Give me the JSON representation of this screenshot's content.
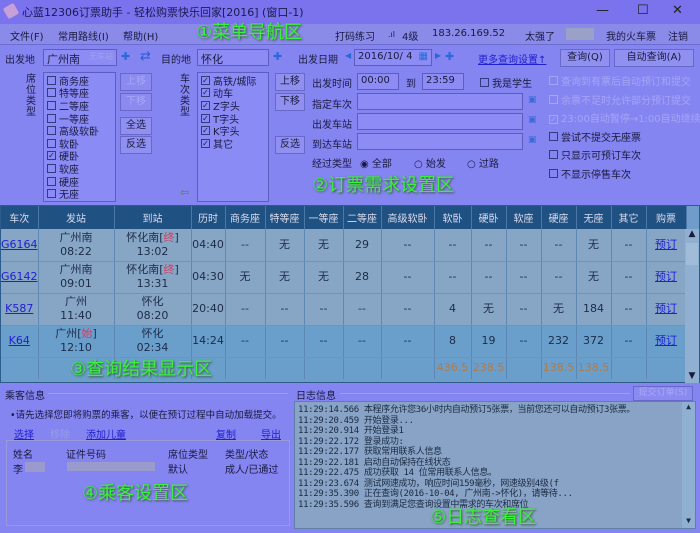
{
  "window": {
    "title": "心蓝12306订票助手 - 轻松购票快乐回家[2016] (窗口-1)",
    "minimize": "—",
    "maximize": "☐",
    "close": "✕"
  },
  "menu": {
    "items": [
      "文件(F)",
      "常用路线(I)",
      "帮助(H)"
    ],
    "captcha_practice": "打码练习",
    "signal": "4级",
    "ip": "183.26.169.52",
    "status": "太强了",
    "my_tickets": "我的火车票",
    "logout": "注销"
  },
  "annotations": [
    "①菜单导航区",
    "②订票需求设置区",
    "③查询结果显示区",
    "④乘客设置区",
    "⑤日志查看区"
  ],
  "query": {
    "from_label": "出发地",
    "from_value": "广州南",
    "from_hint": "无车站",
    "to_label": "目的地",
    "to_value": "怀化",
    "date_label": "出发日期",
    "date_value": "2016/10/ 4",
    "more_settings": "更多查询设置↑",
    "search": "查询(Q)",
    "auto_search": "自动查询(A)",
    "seat_type_label": "席位类型",
    "seat_types": [
      {
        "label": "商务座",
        "checked": false
      },
      {
        "label": "特等座",
        "checked": false
      },
      {
        "label": "二等座",
        "checked": false
      },
      {
        "label": "一等座",
        "checked": false
      },
      {
        "label": "高级软卧",
        "checked": false
      },
      {
        "label": "软卧",
        "checked": false
      },
      {
        "label": "硬卧",
        "checked": true
      },
      {
        "label": "软座",
        "checked": false
      },
      {
        "label": "硬座",
        "checked": false
      },
      {
        "label": "无座",
        "checked": false
      }
    ],
    "move_up": "上移",
    "move_down": "下移",
    "select_all": "全选",
    "invert": "反选",
    "train_type_label": "车次类型",
    "train_types": [
      {
        "label": "高铁/城际",
        "checked": true
      },
      {
        "label": "动车",
        "checked": true
      },
      {
        "label": "Z字头",
        "checked": true
      },
      {
        "label": "T字头",
        "checked": true
      },
      {
        "label": "K字头",
        "checked": true
      },
      {
        "label": "其它",
        "checked": true
      }
    ],
    "time_label": "出发时间",
    "time_from": "00:00",
    "to": "到",
    "time_to": "23:59",
    "student": "我是学生",
    "train_no_label": "指定车次",
    "depart_station_label": "出发车站",
    "arrive_station_label": "到达车站",
    "pass_type_label": "经过类型",
    "pass_types": [
      "全部",
      "始发",
      "过路"
    ],
    "options_disabled": [
      "查询到有票后自动预订和提交",
      "余票不足时允许部分预订提交",
      "23:00自动暂停→1:00自动继续"
    ],
    "options": [
      "尝试不提交无座票",
      "只显示可预订车次",
      "不显示停售车次"
    ]
  },
  "results": {
    "headers": [
      "车次",
      "发站",
      "到站",
      "历时",
      "商务座",
      "特等座",
      "一等座",
      "二等座",
      "高级软卧",
      "软卧",
      "硬卧",
      "软座",
      "硬座",
      "无座",
      "其它",
      "购票"
    ],
    "rows": [
      {
        "train": "G6164",
        "from": "广州南",
        "from_tag": "",
        "dep": "08:22",
        "to": "怀化南",
        "to_tag": "终",
        "arr": "13:02",
        "dur": "04:40",
        "seats": [
          "--",
          "无",
          "无",
          "29",
          "--",
          "--",
          "--",
          "--",
          "--",
          "无",
          "--"
        ],
        "buy": "预订"
      },
      {
        "train": "G6142",
        "from": "广州南",
        "from_tag": "",
        "dep": "09:01",
        "to": "怀化南",
        "to_tag": "终",
        "arr": "13:31",
        "dur": "04:30",
        "seats": [
          "无",
          "无",
          "无",
          "28",
          "--",
          "--",
          "--",
          "--",
          "--",
          "无",
          "--"
        ],
        "buy": "预订"
      },
      {
        "train": "K587",
        "from": "广州",
        "from_tag": "",
        "dep": "11:40",
        "to": "怀化",
        "to_tag": "",
        "arr": "08:20",
        "dur": "20:40",
        "seats": [
          "--",
          "--",
          "--",
          "--",
          "--",
          "4",
          "无",
          "--",
          "无",
          "184",
          "--"
        ],
        "buy": "预订"
      },
      {
        "train": "K64",
        "from": "广州",
        "from_tag": "始",
        "dep": "12:10",
        "to": "怀化",
        "to_tag": "",
        "arr": "02:34",
        "dur": "14:24",
        "seats": [
          "--",
          "--",
          "--",
          "--",
          "--",
          "8",
          "19",
          "--",
          "232",
          "372",
          "--"
        ],
        "buy": "预订"
      }
    ],
    "prices": [
      "",
      "",
      "",
      "",
      "",
      "",
      "",
      "",
      "",
      "436.5",
      "238.5",
      "",
      "138.5",
      "138.5",
      "",
      ""
    ]
  },
  "passengers": {
    "title": "乘客信息",
    "hint": "•请先选择您即将购票的乘客，以便在预订过程中自动加载提交。",
    "select": "选择",
    "remove": "移除",
    "add_child": "添加儿童",
    "copy": "复制",
    "export": "导出",
    "headers": [
      "姓名",
      "证件号码",
      "席位类型",
      "类型/状态"
    ],
    "rows": [
      {
        "name": "李",
        "seat": "默认",
        "status": "成人/已通过"
      }
    ]
  },
  "log": {
    "title": "日志信息",
    "submit": "提交订单(S)",
    "lines": [
      "11:29:14.566 本程序允许您36小时内自动预订5张票，当前您还可以自动预订3张票。",
      "11:29:20.459 开始登录...",
      "11:29:20.914 开始登录1",
      "11:29:22.172 登录成功:",
      "11:29:22.177 获取常用联系人信息",
      "11:29:22.181 启动自动保持在线状态",
      "11:29:22.475 成功获取 14 位常用联系人信息。",
      "11:29:23.674 测试网速成功，响应时间159毫秒，网速级别4级(f",
      "11:29:35.390 正在查询(2016-10-04, 广州南->怀化)，请等待...",
      "11:29:35.596 查询到满足您查询设置中需求的车次和席位"
    ]
  }
}
